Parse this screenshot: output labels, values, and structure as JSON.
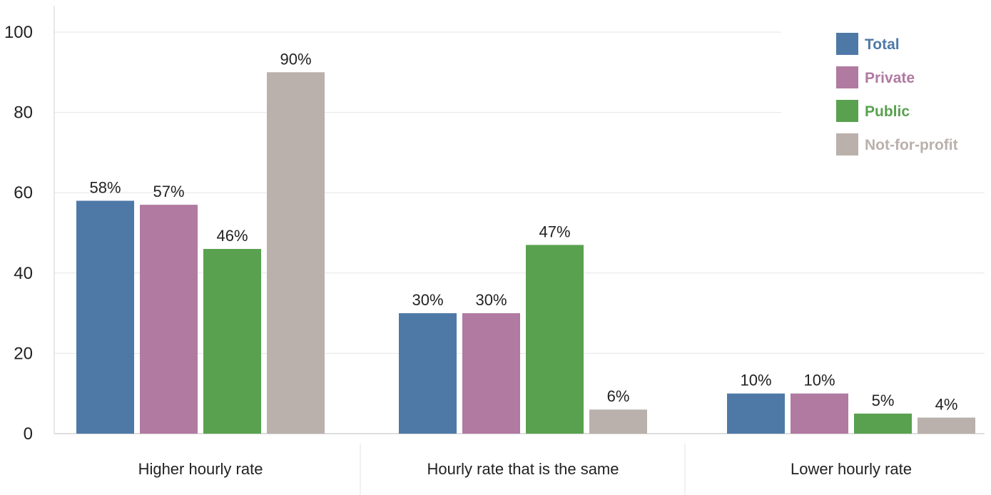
{
  "chart_data": {
    "type": "bar",
    "categories": [
      "Higher hourly rate",
      "Hourly rate that is the same",
      "Lower hourly rate"
    ],
    "series": [
      {
        "name": "Total",
        "color": "#4e79a7",
        "values": [
          58,
          30,
          10
        ]
      },
      {
        "name": "Private",
        "color": "#b07aa1",
        "values": [
          57,
          30,
          10
        ]
      },
      {
        "name": "Public",
        "color": "#59a14f",
        "values": [
          46,
          47,
          5
        ]
      },
      {
        "name": "Not-for-profit",
        "color": "#bab0ac",
        "values": [
          90,
          6,
          4
        ]
      }
    ],
    "data_labels": [
      [
        "58%",
        "30%",
        "10%"
      ],
      [
        "57%",
        "30%",
        "10%"
      ],
      [
        "46%",
        "47%",
        "5%"
      ],
      [
        "90%",
        "6%",
        "4%"
      ]
    ],
    "y_ticks": [
      "0",
      "20",
      "40",
      "60",
      "80",
      "100"
    ],
    "ylim": [
      0,
      100
    ],
    "grid": true,
    "legend_position": "top-right",
    "title": "",
    "xlabel": "",
    "ylabel": ""
  }
}
